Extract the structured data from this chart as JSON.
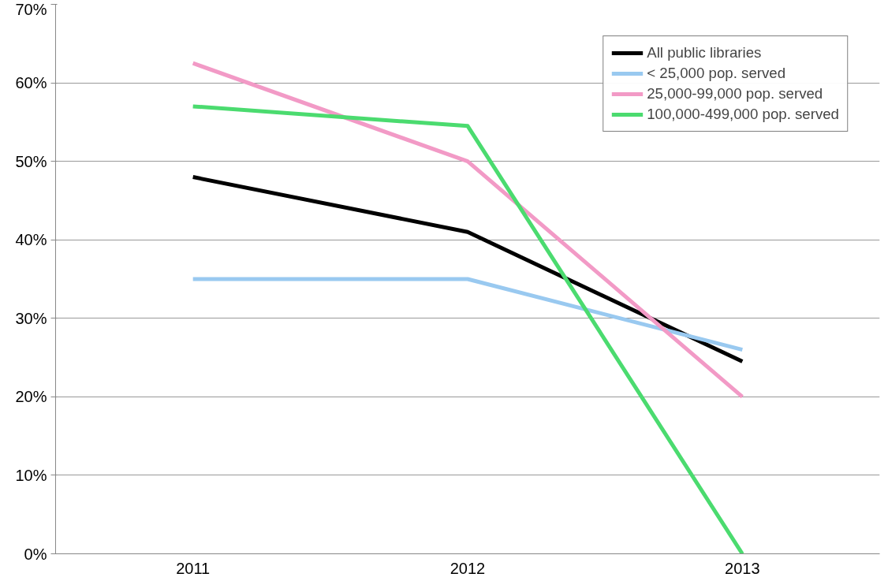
{
  "chart_data": {
    "type": "line",
    "categories": [
      "2011",
      "2012",
      "2013"
    ],
    "ylim": [
      0,
      70
    ],
    "yticks": [
      {
        "value": 0,
        "label": "0%"
      },
      {
        "value": 10,
        "label": "10%"
      },
      {
        "value": 20,
        "label": "20%"
      },
      {
        "value": 30,
        "label": "30%"
      },
      {
        "value": 40,
        "label": "40%"
      },
      {
        "value": 50,
        "label": "50%"
      },
      {
        "value": 60,
        "label": "60%"
      },
      {
        "value": 70,
        "label": "70%"
      }
    ],
    "grid": "y",
    "legend": "top right",
    "marker": "none",
    "line_style": "solid",
    "series": [
      {
        "name": "All public libraries",
        "color": "#000000",
        "values": [
          48,
          41,
          24.5
        ]
      },
      {
        "name": "< 25,000 pop. served",
        "color": "#99c9f0",
        "values": [
          35,
          35,
          26
        ]
      },
      {
        "name": "25,000-99,000 pop. served",
        "color": "#f29ac6",
        "values": [
          62.5,
          50,
          20
        ]
      },
      {
        "name": "100,000-499,000 pop. served",
        "color": "#4bdb6f",
        "values": [
          57,
          54.5,
          0
        ]
      }
    ]
  }
}
